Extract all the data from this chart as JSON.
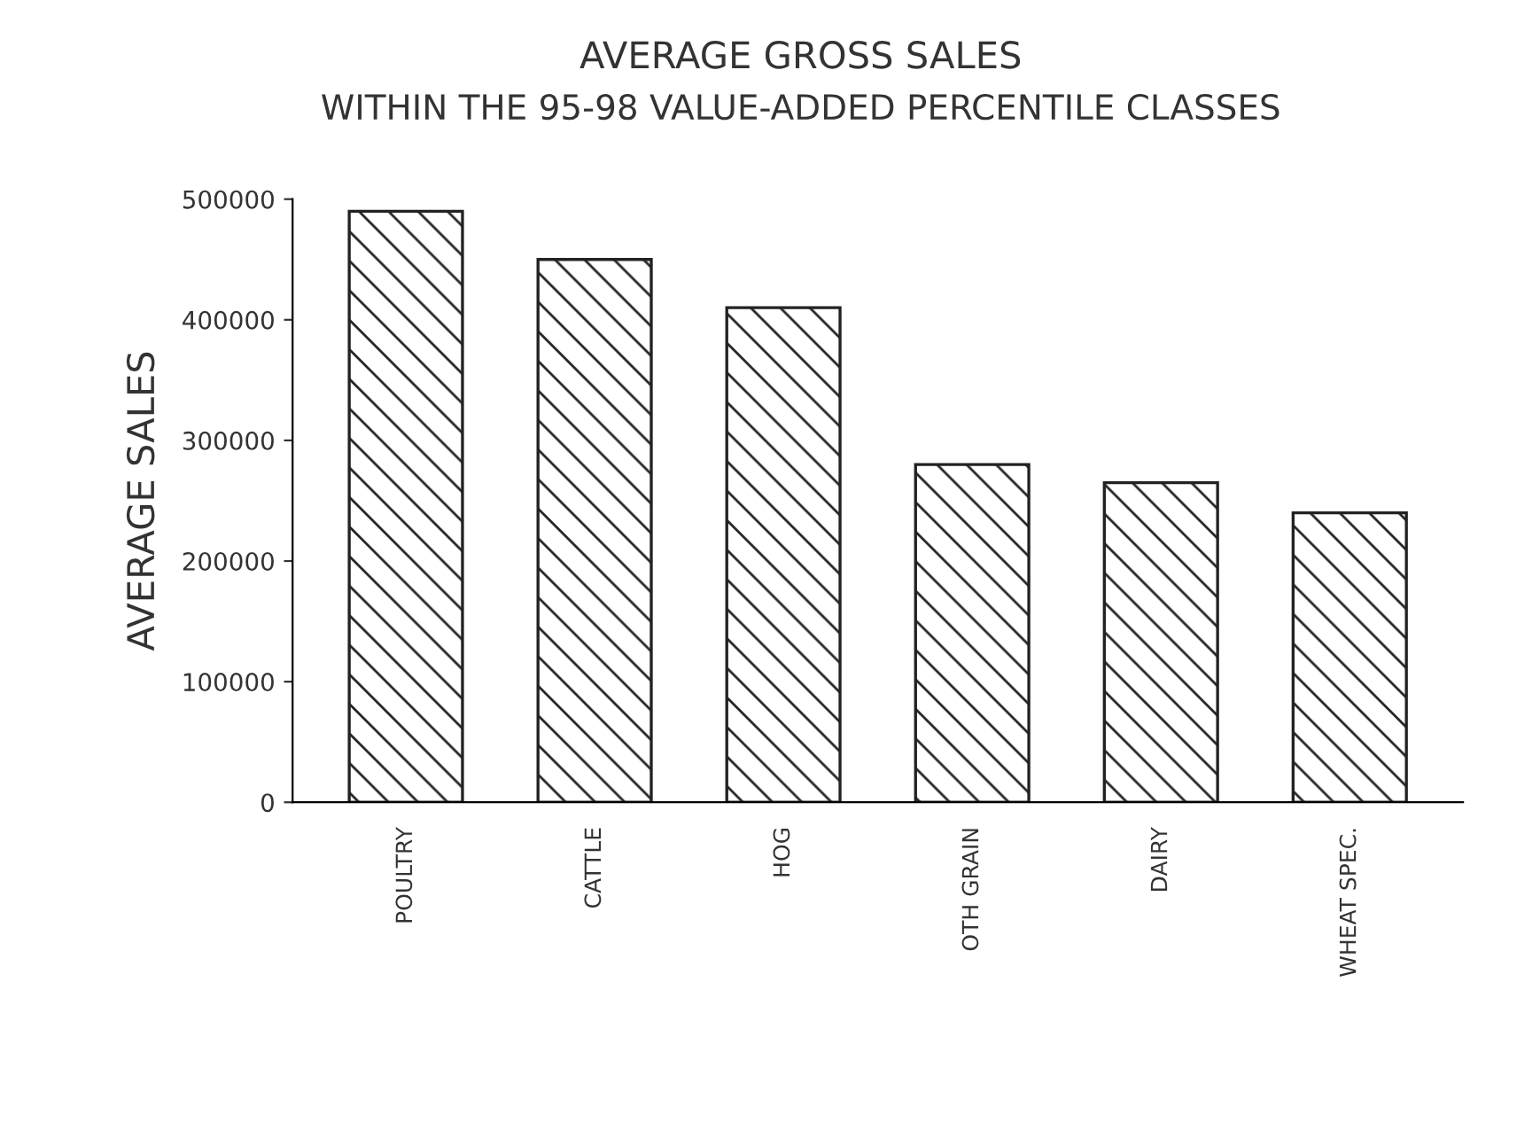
{
  "chart_data": {
    "type": "bar",
    "title": "AVERAGE GROSS SALES",
    "subtitle": "WITHIN THE 95-98 VALUE-ADDED PERCENTILE CLASSES",
    "ylabel": "AVERAGE SALES",
    "categories": [
      "POULTRY",
      "CATTLE",
      "HOG",
      "OTH GRAIN",
      "DAIRY",
      "WHEAT SPEC."
    ],
    "values": [
      490000,
      450000,
      410000,
      280000,
      265000,
      240000
    ],
    "color": "#222222",
    "ylim": [
      0,
      500000
    ],
    "yticks": [
      0,
      100000,
      200000,
      300000,
      400000,
      500000
    ],
    "grid": false
  }
}
